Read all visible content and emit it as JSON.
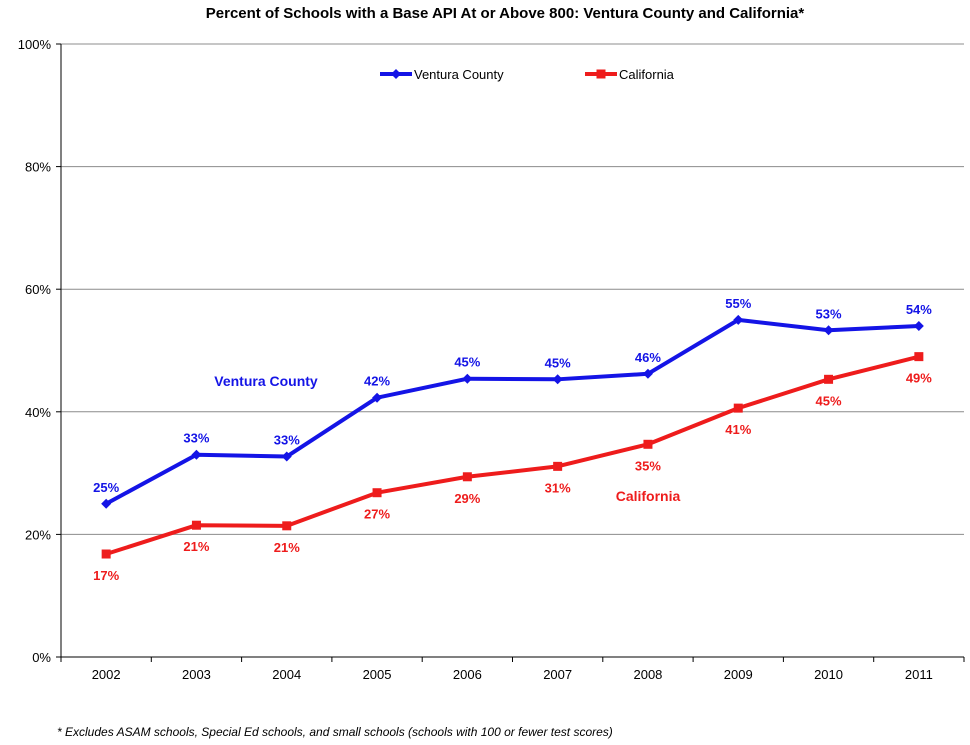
{
  "chart_data": {
    "type": "line",
    "title": "Percent of Schools with a Base API At or Above 800: Ventura County and California*",
    "xlabel": "",
    "ylabel": "",
    "x": [
      "2002",
      "2003",
      "2004",
      "2005",
      "2006",
      "2007",
      "2008",
      "2009",
      "2010",
      "2011"
    ],
    "ylim": [
      0,
      100
    ],
    "y_ticks": [
      0,
      20,
      40,
      60,
      80,
      100
    ],
    "y_tick_labels": [
      "0%",
      "20%",
      "40%",
      "60%",
      "80%",
      "100%"
    ],
    "grid": true,
    "legend_position": "top-center",
    "series": [
      {
        "name": "Ventura County",
        "color": "#1414E6",
        "marker": "diamond",
        "values": [
          25,
          33,
          32.7,
          42.3,
          45.4,
          45.3,
          46.2,
          55,
          53.3,
          54
        ],
        "data_labels": [
          "25%",
          "33%",
          "33%",
          "42%",
          "45%",
          "45%",
          "46%",
          "55%",
          "53%",
          "54%"
        ],
        "annotation": "Ventura County"
      },
      {
        "name": "California",
        "color": "#EE1C1C",
        "marker": "square",
        "values": [
          16.8,
          21.5,
          21.4,
          26.8,
          29.4,
          31.1,
          34.7,
          40.6,
          45.3,
          49
        ],
        "data_labels": [
          "17%",
          "21%",
          "21%",
          "27%",
          "29%",
          "31%",
          "35%",
          "41%",
          "45%",
          "49%"
        ],
        "annotation": "California"
      }
    ],
    "footnote": "*  Excludes ASAM schools, Special Ed schools, and small schools (schools with 100 or fewer test scores)"
  }
}
